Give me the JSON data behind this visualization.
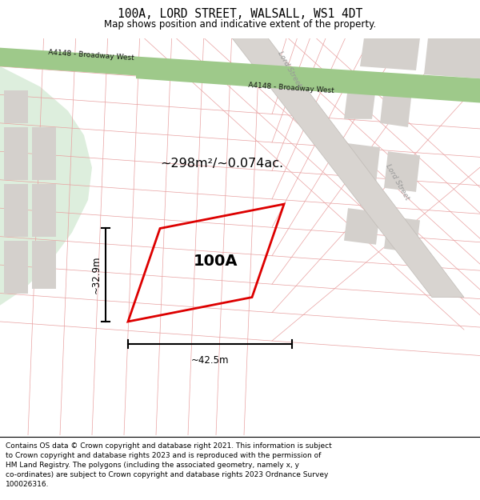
{
  "title": "100A, LORD STREET, WALSALL, WS1 4DT",
  "subtitle": "Map shows position and indicative extent of the property.",
  "footer": "Contains OS data © Crown copyright and database right 2021. This information is subject\nto Crown copyright and database rights 2023 and is reproduced with the permission of\nHM Land Registry. The polygons (including the associated geometry, namely x, y\nco-ordinates) are subject to Crown copyright and database rights 2023 Ordnance Survey\n100026316.",
  "map_bg": "#f2eeea",
  "road_green_color": "#9ec98a",
  "road_green_border": "#7aab62",
  "road_label1": "A4148 - Broadway West",
  "road_label2": "A4148 - Broadway West",
  "street_label1": "Lord Street",
  "street_label2": "Lord Street",
  "plot_outline_color": "#dd0000",
  "plot_label": "100A",
  "area_label": "~298m²/~0.074ac.",
  "dim_width_label": "~42.5m",
  "dim_height_label": "~32.9m",
  "grid_line_color": "#e8a0a0",
  "block_fill": "#d4d0cc",
  "light_green_area": "#ddeedd",
  "lord_street_fill": "#d8d4d0",
  "white": "#ffffff"
}
